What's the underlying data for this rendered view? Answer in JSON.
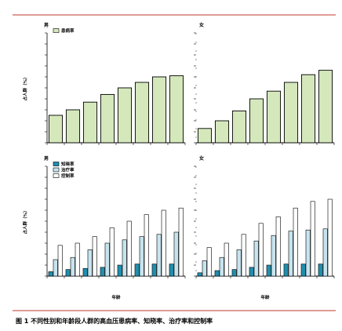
{
  "figure": {
    "caption": "图 1 不同性别和年龄段人群的高血压患病率、知晓率、治疗率和控制率",
    "rule_color": "#c0392b"
  },
  "chart_data": [
    {
      "type": "bar",
      "panel": "top-left",
      "title": "男",
      "ylabel": "占人群（%）",
      "xlabel": "",
      "ylim": [
        0,
        100
      ],
      "series": [
        {
          "name": "患病率",
          "color": "#d4e8bc",
          "values": [
            25,
            30,
            37,
            44,
            50,
            55,
            60,
            61
          ]
        }
      ],
      "legend": "top-left"
    },
    {
      "type": "bar",
      "panel": "top-right",
      "title": "女",
      "ylabel": "",
      "xlabel": "",
      "ylim": [
        0,
        100
      ],
      "series": [
        {
          "name": "患病率",
          "color": "#d4e8bc",
          "values": [
            13,
            20,
            29,
            40,
            47,
            55,
            62,
            66
          ]
        }
      ]
    },
    {
      "type": "bar",
      "panel": "bottom-left",
      "title": "男",
      "ylabel": "占人群（%）",
      "xlabel": "年龄",
      "ylim": [
        0,
        100
      ],
      "series": [
        {
          "name": "知晓率",
          "color": "#1f8fae",
          "values": [
            4,
            6,
            7,
            8,
            10,
            11,
            11,
            11
          ]
        },
        {
          "name": "治疗率",
          "color": "#c6e4ef",
          "values": [
            15,
            17,
            24,
            30,
            33,
            36,
            38,
            40
          ]
        },
        {
          "name": "控制率",
          "color": "#ffffff",
          "values": [
            28,
            30,
            36,
            44,
            50,
            56,
            60,
            62
          ]
        }
      ],
      "legend": "top-left"
    },
    {
      "type": "bar",
      "panel": "bottom-right",
      "title": "女",
      "ylabel": "",
      "xlabel": "年龄",
      "ylim": [
        0,
        100
      ],
      "series": [
        {
          "name": "知晓率",
          "color": "#1f8fae",
          "values": [
            3,
            5,
            6,
            8,
            10,
            11,
            11,
            11
          ]
        },
        {
          "name": "治疗率",
          "color": "#c6e4ef",
          "values": [
            14,
            17,
            24,
            32,
            37,
            41,
            42,
            43
          ]
        },
        {
          "name": "控制率",
          "color": "#ffffff",
          "values": [
            26,
            30,
            38,
            48,
            54,
            62,
            68,
            70
          ]
        }
      ]
    }
  ]
}
